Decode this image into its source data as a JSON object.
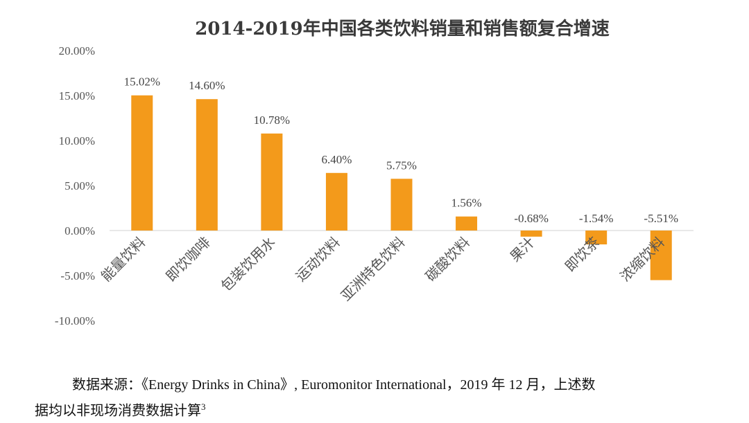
{
  "chart_data": {
    "type": "bar",
    "title": "2014-2019年中国各类饮料销量和销售额复合增速",
    "categories": [
      "能量饮料",
      "即饮咖啡",
      "包装饮用水",
      "运动饮料",
      "亚洲特色饮料",
      "碳酸饮料",
      "果汁",
      "即饮茶",
      "浓缩饮料"
    ],
    "values": [
      15.02,
      14.6,
      10.78,
      6.4,
      5.75,
      1.56,
      -0.68,
      -1.54,
      -5.51
    ],
    "data_labels": [
      "15.02%",
      "14.60%",
      "10.78%",
      "6.40%",
      "5.75%",
      "1.56%",
      "-0.68%",
      "-1.54%",
      "-5.51%"
    ],
    "y_ticks": [
      20,
      15,
      10,
      5,
      0,
      -5,
      -10
    ],
    "y_tick_labels": [
      "20.00%",
      "15.00%",
      "10.00%",
      "5.00%",
      "0.00%",
      "-5.00%",
      "-10.00%"
    ],
    "ylim": [
      -10,
      20
    ],
    "xlabel": "",
    "ylabel": "",
    "grid": false,
    "legend": "none",
    "bar_color": "#F39A1B",
    "axis_color": "#D9D9D9"
  },
  "source": {
    "line1": "数据来源：《Energy Drinks in China》, Euromonitor International，2019 年 12 月，上述数",
    "line2": "据均以非现场消费数据计算",
    "footnote_mark": "3"
  }
}
